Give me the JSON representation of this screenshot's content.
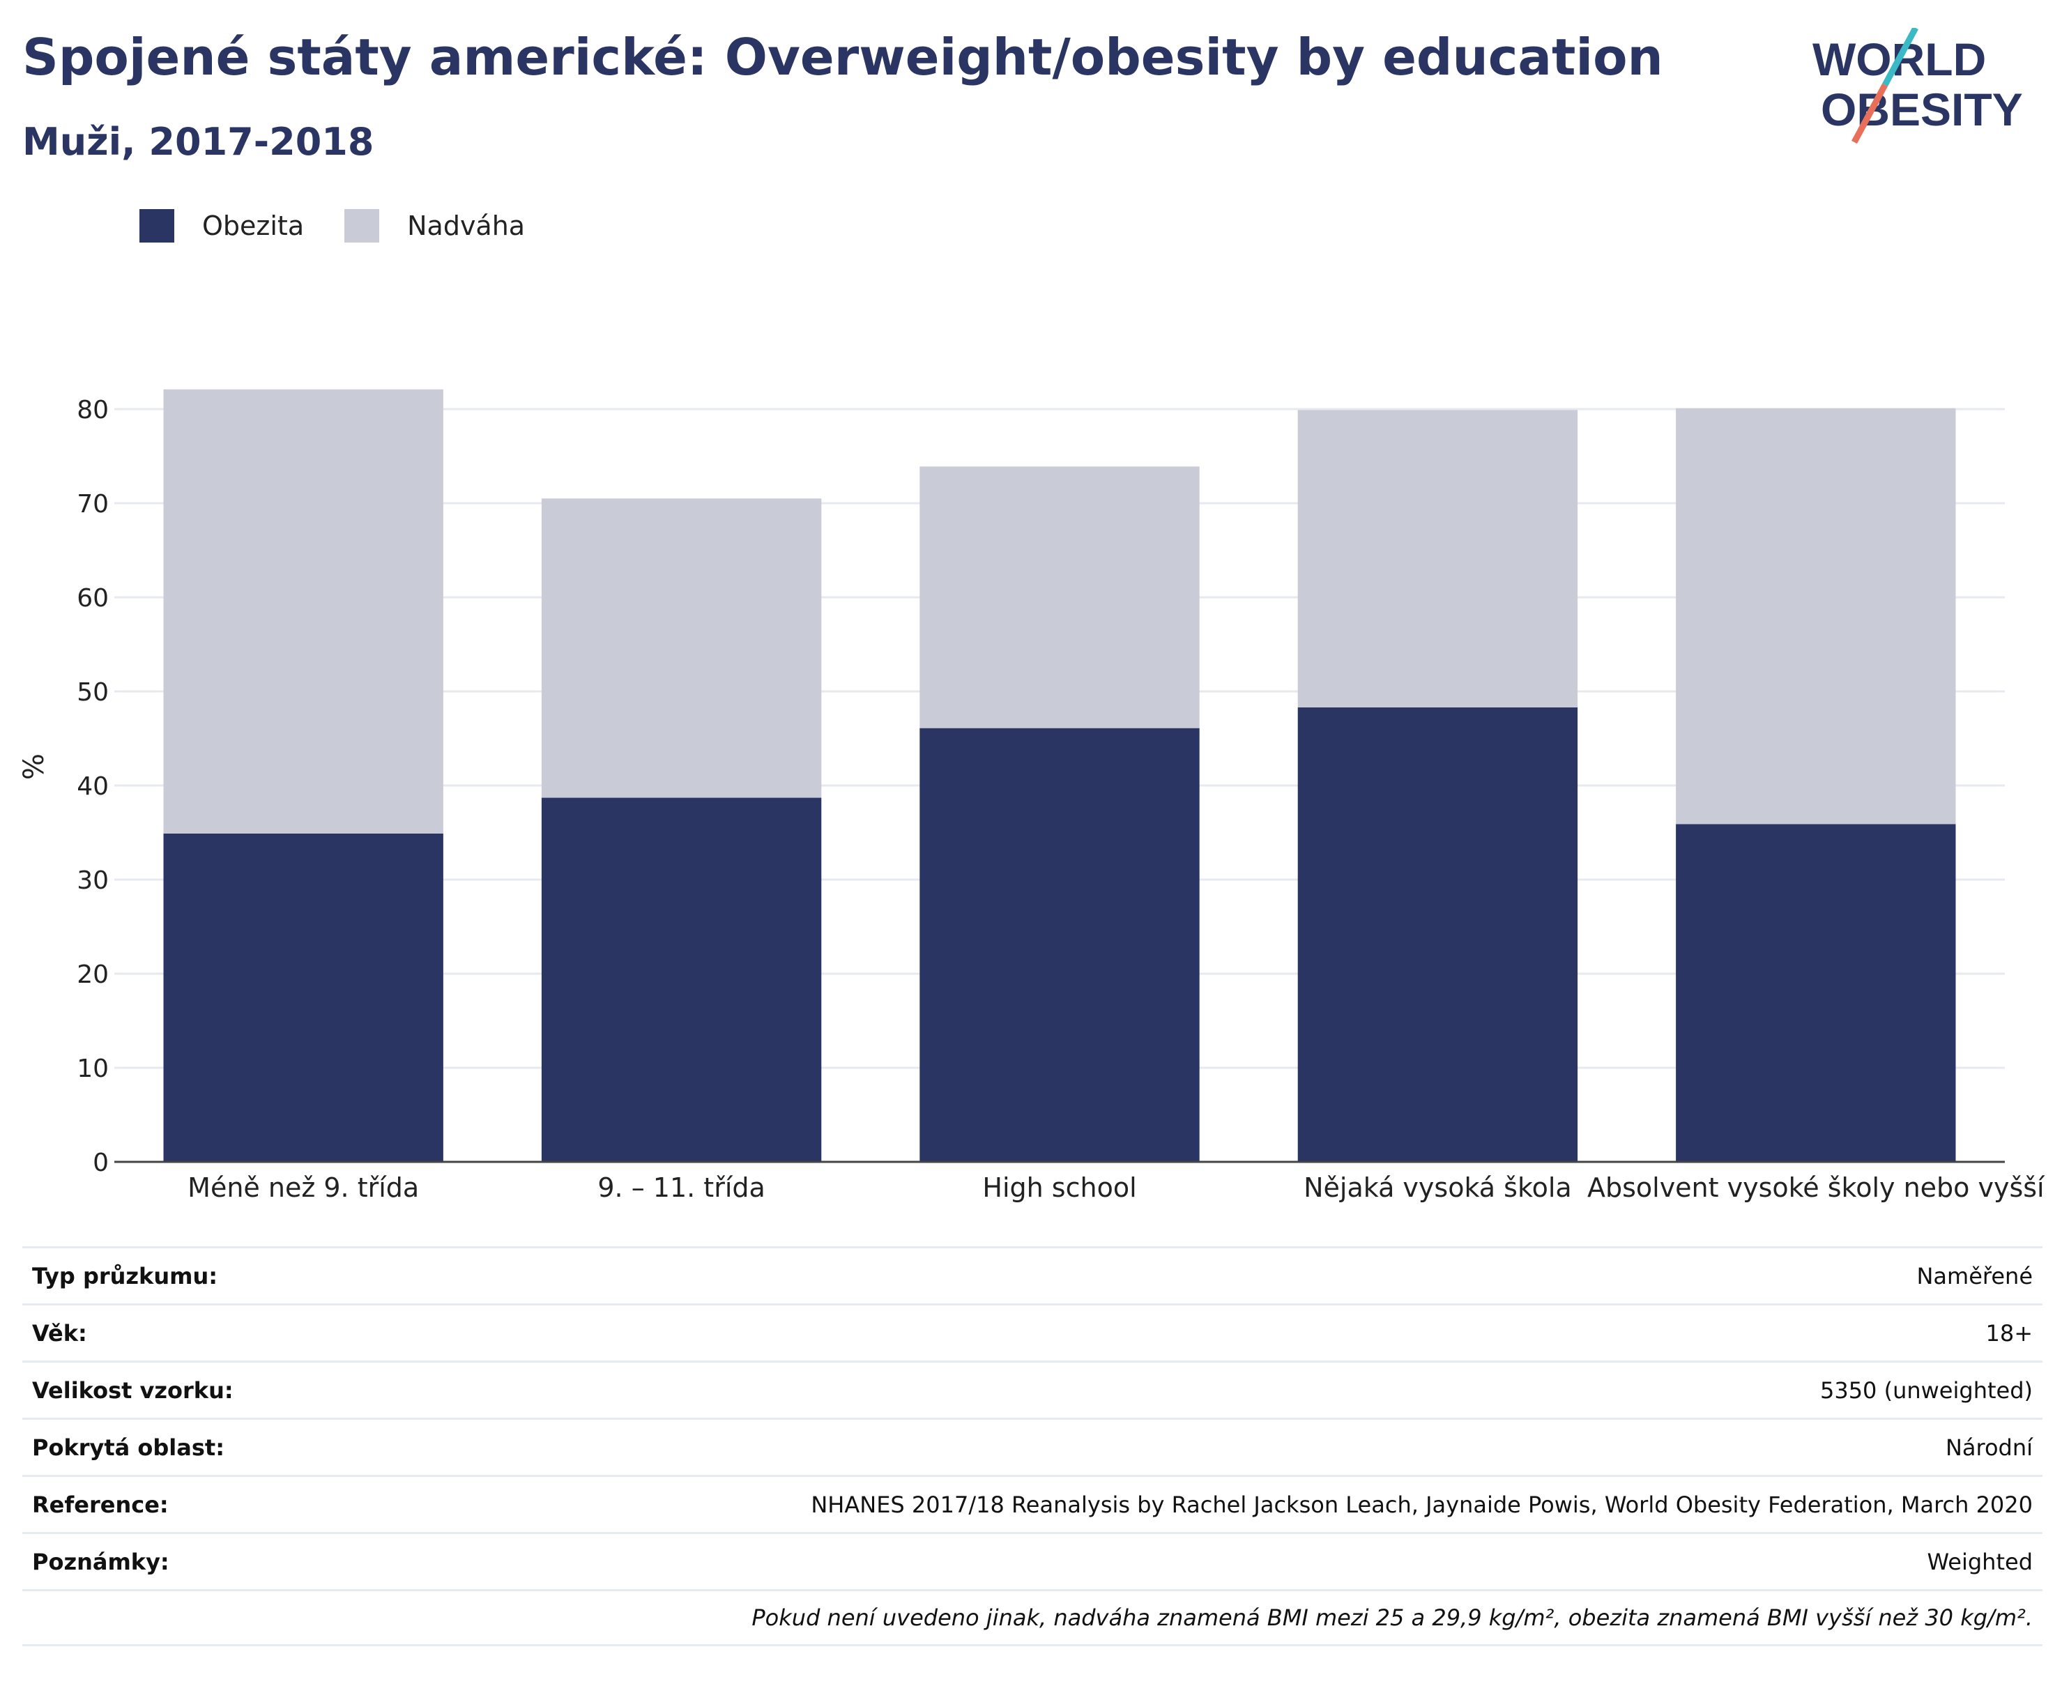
{
  "title": "Spojené státy americké: Overweight/obesity by education",
  "subtitle": "Muži, 2017-2018",
  "logo": {
    "line1": "WORLD",
    "line2": "OBESITY",
    "colors": {
      "text": "#2a3563",
      "slash_top": "#3bb9c4",
      "slash_bottom": "#e8705a"
    }
  },
  "legend": [
    {
      "label": "Obezita",
      "color": "#2a3563"
    },
    {
      "label": "Nadváha",
      "color": "#c9ccd7"
    }
  ],
  "chart_data": {
    "type": "bar",
    "stacked": true,
    "categories": [
      "Méně než 9. třída",
      "9. – 11. třída",
      "High school",
      "Nějaká vysoká škola",
      "Absolvent vysoké školy nebo vyšší"
    ],
    "series": [
      {
        "name": "Obezita",
        "values": [
          34.9,
          38.7,
          46.1,
          48.3,
          35.9
        ],
        "color": "#2a3563"
      },
      {
        "name": "Nadváha",
        "values": [
          47.2,
          31.8,
          27.8,
          31.6,
          44.2
        ],
        "color": "#c9ccd7"
      }
    ],
    "ylabel": "%",
    "ylim": [
      0,
      84
    ],
    "yticks": [
      0,
      10,
      20,
      30,
      40,
      50,
      60,
      70,
      80
    ],
    "grid": true
  },
  "info": [
    {
      "label": "Typ průzkumu:",
      "value": "Naměřené"
    },
    {
      "label": "Věk:",
      "value": "18+"
    },
    {
      "label": "Velikost vzorku:",
      "value": "5350 (unweighted)"
    },
    {
      "label": "Pokrytá oblast:",
      "value": "Národní"
    },
    {
      "label": "Reference:",
      "value": "NHANES 2017/18 Reanalysis by Rachel Jackson Leach, Jaynaide Powis, World Obesity Federation, March 2020"
    },
    {
      "label": "Poznámky:",
      "value": "Weighted"
    }
  ],
  "footnote": "Pokud není uvedeno jinak, nadváha znamená BMI mezi 25 a 29,9 kg/m², obezita znamená BMI vyšší než 30 kg/m²."
}
